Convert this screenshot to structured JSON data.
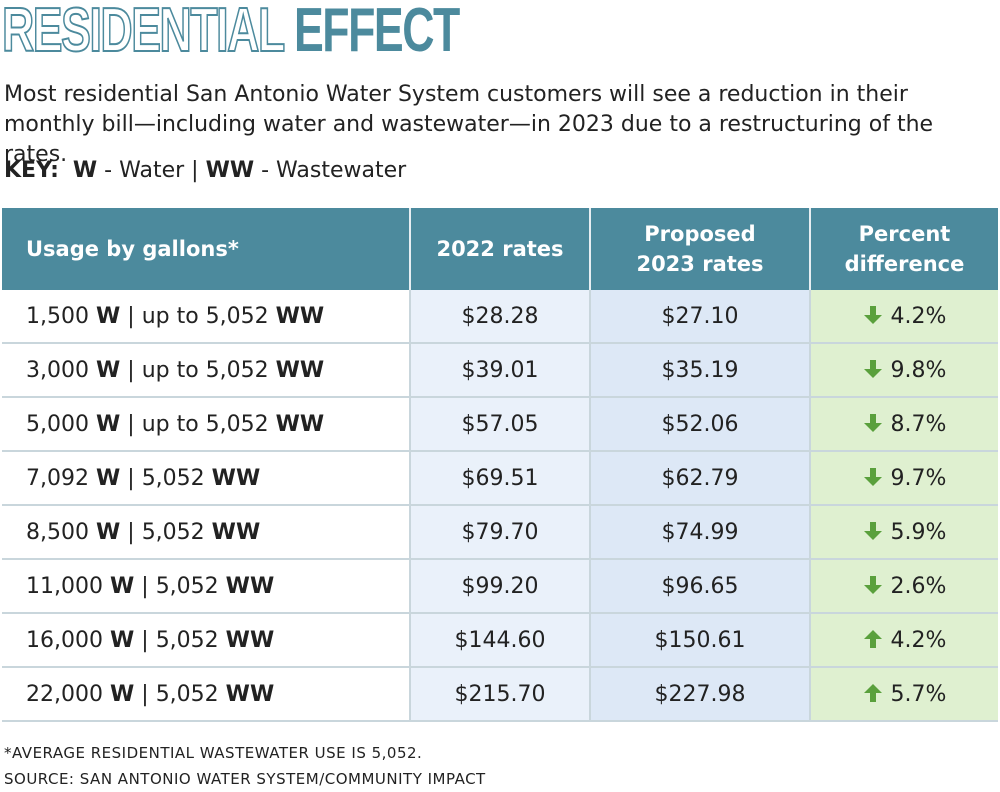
{
  "title_outline": "RESIDENTIAL",
  "title_solid": "EFFECT",
  "subtitle": "Most residential San Antonio Water System customers will see a reduction in their monthly bill—including water and wastewater—in 2023 due to a restructuring of the rates.",
  "key": {
    "label": "KEY:",
    "w_code": "W",
    "w_text": " - Water ",
    "separator": "|",
    "ww_code": "WW",
    "ww_text": " - Wastewater"
  },
  "colors": {
    "header_bg": "#4c8a9d",
    "title": "#4c8a9d",
    "rates_2022_bg": "#eaf1fa",
    "rates_2023_bg": "#dde8f6",
    "percent_bg": "#dff0d0",
    "arrow": "#5aa03c"
  },
  "chart_data": {
    "type": "table",
    "title": "RESIDENTIAL EFFECT",
    "columns": [
      "Usage by gallons*",
      "2022 rates",
      "Proposed 2023 rates",
      "Percent difference"
    ],
    "rows": [
      {
        "water": "1,500",
        "ww_prefix": "up to ",
        "wastewater": "5,052",
        "rate_2022": "$28.28",
        "rate_2023": "$27.10",
        "direction": "down",
        "percent": "4.2%"
      },
      {
        "water": "3,000",
        "ww_prefix": "up to ",
        "wastewater": "5,052",
        "rate_2022": "$39.01",
        "rate_2023": "$35.19",
        "direction": "down",
        "percent": "9.8%"
      },
      {
        "water": "5,000",
        "ww_prefix": "up to ",
        "wastewater": "5,052",
        "rate_2022": "$57.05",
        "rate_2023": "$52.06",
        "direction": "down",
        "percent": "8.7%"
      },
      {
        "water": "7,092",
        "ww_prefix": "",
        "wastewater": "5,052",
        "rate_2022": "$69.51",
        "rate_2023": "$62.79",
        "direction": "down",
        "percent": "9.7%"
      },
      {
        "water": "8,500",
        "ww_prefix": "",
        "wastewater": "5,052",
        "rate_2022": "$79.70",
        "rate_2023": "$74.99",
        "direction": "down",
        "percent": "5.9%"
      },
      {
        "water": "11,000",
        "ww_prefix": "",
        "wastewater": "5,052",
        "rate_2022": "$99.20",
        "rate_2023": "$96.65",
        "direction": "down",
        "percent": "2.6%"
      },
      {
        "water": "16,000",
        "ww_prefix": "",
        "wastewater": "5,052",
        "rate_2022": "$144.60",
        "rate_2023": "$150.61",
        "direction": "up",
        "percent": "4.2%"
      },
      {
        "water": "22,000",
        "ww_prefix": "",
        "wastewater": "5,052",
        "rate_2022": "$215.70",
        "rate_2023": "$227.98",
        "direction": "up",
        "percent": "5.7%"
      }
    ]
  },
  "footnotes": [
    "*AVERAGE RESIDENTIAL WASTEWATER USE IS 5,052.",
    "SOURCE: SAN ANTONIO WATER SYSTEM/COMMUNITY IMPACT"
  ]
}
